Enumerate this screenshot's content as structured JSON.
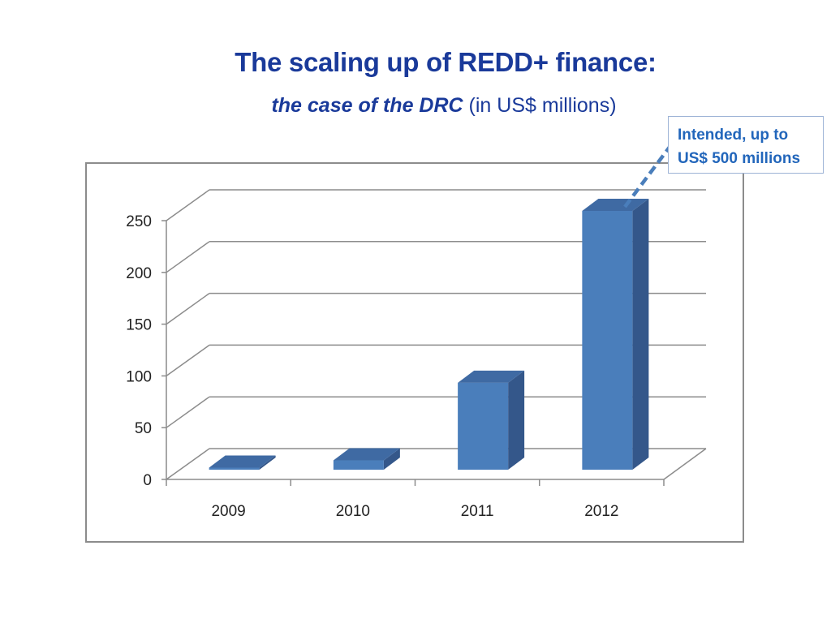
{
  "title": "The scaling up of REDD+ finance:",
  "subtitle": {
    "italic_part": "the case of the DRC",
    "plain_part": " (in US$ millions)"
  },
  "callout": {
    "line1": "Intended, up to",
    "line2": "US$ 500 millions"
  },
  "colors": {
    "title": "#1a3a9a",
    "bar_front": "#4a7ebb",
    "bar_side": "#34578a",
    "bar_top": "#3f6aa3",
    "grid": "#8c8c8c",
    "callout_text": "#2266bb"
  },
  "chart_data": {
    "type": "bar",
    "title": "The scaling up of REDD+ finance: the case of the DRC (in US$ millions)",
    "categories": [
      "2009",
      "2010",
      "2011",
      "2012"
    ],
    "values": [
      2,
      9,
      84,
      250
    ],
    "xlabel": "",
    "ylabel": "US$ millions",
    "ylim": [
      0,
      250
    ],
    "yticks": [
      0,
      50,
      100,
      150,
      200,
      250
    ],
    "grid": true,
    "legend": null,
    "style": "3d-column",
    "annotations": [
      {
        "target": "2012",
        "text": "Intended, up to US$ 500 millions"
      }
    ]
  }
}
